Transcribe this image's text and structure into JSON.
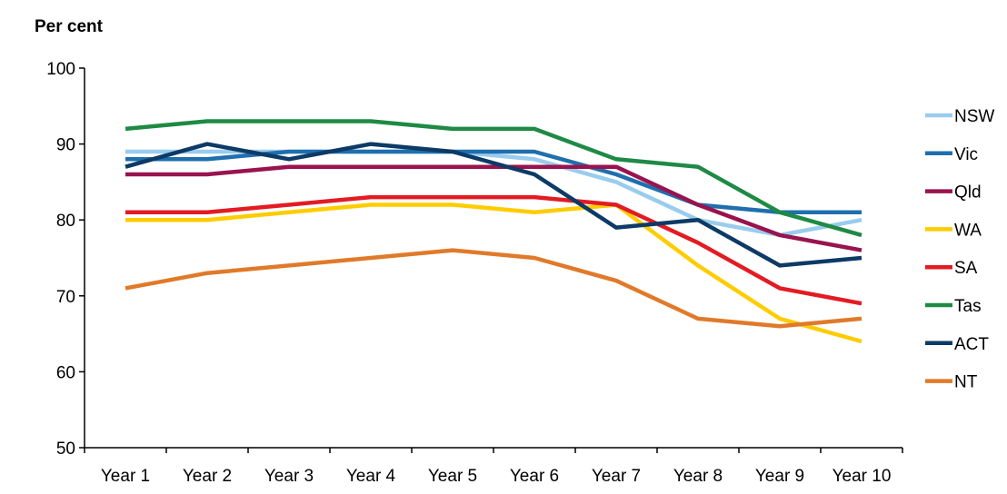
{
  "chart_data": {
    "type": "line",
    "ylabel": "Per cent",
    "xlabel": "",
    "categories": [
      "Year 1",
      "Year 2",
      "Year 3",
      "Year 4",
      "Year 5",
      "Year 6",
      "Year 7",
      "Year 8",
      "Year 9",
      "Year 10"
    ],
    "ylim": [
      50,
      100
    ],
    "yticks": [
      50,
      60,
      70,
      80,
      90,
      100
    ],
    "grid": false,
    "legend_position": "right",
    "series": [
      {
        "name": "NSW",
        "color": "#99ccee",
        "values": [
          89,
          89,
          89,
          89,
          89,
          88,
          85,
          80,
          78,
          80
        ]
      },
      {
        "name": "Vic",
        "color": "#1f6fae",
        "values": [
          88,
          88,
          89,
          89,
          89,
          89,
          86,
          82,
          81,
          81
        ]
      },
      {
        "name": "Qld",
        "color": "#99134e",
        "values": [
          86,
          86,
          87,
          87,
          87,
          87,
          87,
          82,
          78,
          76
        ]
      },
      {
        "name": "WA",
        "color": "#ffcc00",
        "values": [
          80,
          80,
          81,
          82,
          82,
          81,
          82,
          74,
          67,
          64
        ]
      },
      {
        "name": "SA",
        "color": "#e31b23",
        "values": [
          81,
          81,
          82,
          83,
          83,
          83,
          82,
          77,
          71,
          69
        ]
      },
      {
        "name": "Tas",
        "color": "#1e8a45",
        "values": [
          92,
          93,
          93,
          93,
          92,
          92,
          88,
          87,
          81,
          78
        ]
      },
      {
        "name": "ACT",
        "color": "#0d3a66",
        "values": [
          87,
          90,
          88,
          90,
          89,
          86,
          79,
          80,
          74,
          75
        ]
      },
      {
        "name": "NT",
        "color": "#e07a2a",
        "values": [
          71,
          73,
          74,
          75,
          76,
          75,
          72,
          67,
          66,
          67
        ]
      }
    ]
  }
}
